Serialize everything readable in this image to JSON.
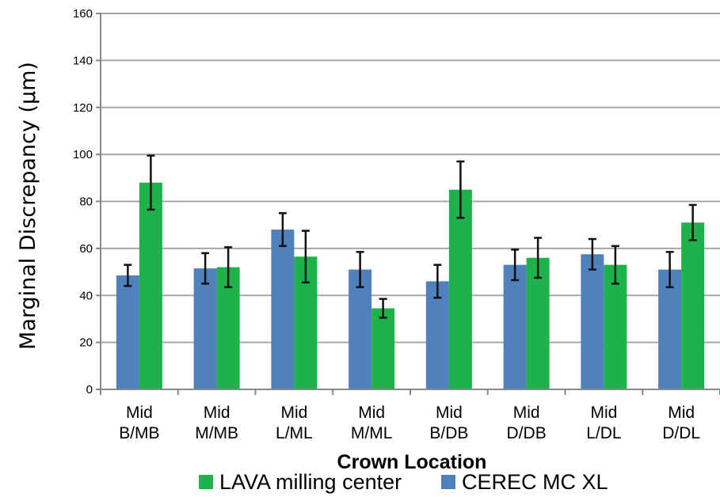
{
  "chart_data": {
    "type": "bar",
    "xlabel": "Crown Location",
    "ylabel": "Marginal Discrepancy (µm)",
    "ylim": [
      0,
      160
    ],
    "yticks": [
      0,
      20,
      40,
      60,
      80,
      100,
      120,
      140,
      160
    ],
    "grid": true,
    "legend_position": "bottom",
    "categories": [
      [
        "Mid",
        "B/MB"
      ],
      [
        "Mid",
        "M/MB"
      ],
      [
        "Mid",
        "L/ML"
      ],
      [
        "Mid",
        "M/ML"
      ],
      [
        "Mid",
        "B/DB"
      ],
      [
        "Mid",
        "D/DB"
      ],
      [
        "Mid",
        "L/DL"
      ],
      [
        "Mid",
        "D/DL"
      ]
    ],
    "series": [
      {
        "name": "CEREC MC XL",
        "color": "#4f81bd",
        "values": [
          48.5,
          51.5,
          68,
          51,
          46,
          53,
          57.5,
          51
        ],
        "error": [
          4.5,
          6.5,
          7,
          7.5,
          7,
          6.5,
          6.5,
          7.5
        ]
      },
      {
        "name": "LAVA milling center",
        "color": "#1fb24a",
        "values": [
          88,
          52,
          56.5,
          34.5,
          85,
          56,
          53,
          71
        ],
        "error": [
          11.5,
          8.5,
          11,
          4,
          12,
          8.5,
          8,
          7.5
        ]
      }
    ],
    "legend_order": [
      "LAVA milling center",
      "CEREC MC XL"
    ]
  }
}
